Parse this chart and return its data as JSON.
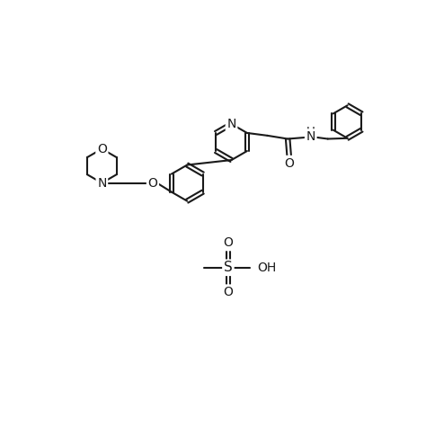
{
  "background_color": "#ffffff",
  "line_color": "#1a1a1a",
  "line_width": 1.5,
  "font_size": 10,
  "figsize": [
    4.74,
    4.74
  ],
  "dpi": 100,
  "xlim": [
    0,
    10
  ],
  "ylim": [
    0,
    10
  ]
}
